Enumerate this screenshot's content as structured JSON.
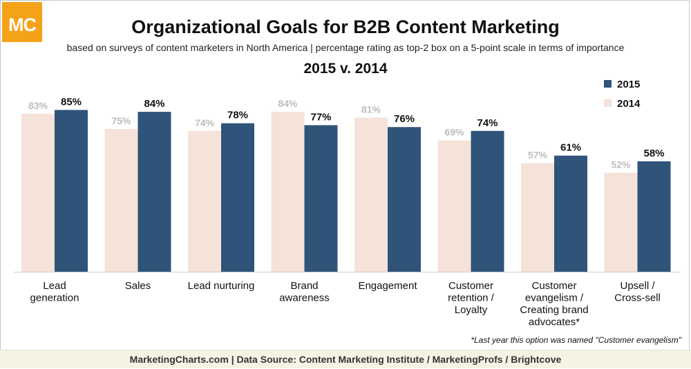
{
  "logo": {
    "text": "MC"
  },
  "header": {
    "title": "Organizational Goals for B2B Content Marketing",
    "subtitle": "based on surveys of content marketers in North America | percentage rating as top-2 box on a 5-point scale in terms of importance",
    "period": "2015 v. 2014"
  },
  "chart_data": {
    "type": "bar",
    "title": "Organizational Goals for B2B Content Marketing",
    "categories": [
      [
        "Lead",
        "generation"
      ],
      [
        "Sales"
      ],
      [
        "Lead nurturing"
      ],
      [
        "Brand",
        "awareness"
      ],
      [
        "Engagement"
      ],
      [
        "Customer",
        "retention /",
        "Loyalty"
      ],
      [
        "Customer",
        "evangelism /",
        "Creating brand",
        "advocates*"
      ],
      [
        "Upsell /",
        "Cross-sell"
      ]
    ],
    "series": [
      {
        "name": "2014",
        "color": "#f5e2d9",
        "label_color": "#bdbdbd",
        "values": [
          83,
          75,
          74,
          84,
          81,
          69,
          57,
          52
        ]
      },
      {
        "name": "2015",
        "color": "#30537a",
        "label_color": "#111111",
        "values": [
          85,
          84,
          78,
          77,
          76,
          74,
          61,
          58
        ]
      }
    ],
    "value_suffix": "%",
    "ylim": [
      0,
      100
    ],
    "grid": false,
    "legend": {
      "position": "top-right",
      "order": [
        "2015",
        "2014"
      ]
    },
    "xlabel": "",
    "ylabel": ""
  },
  "footnote": "*Last year this option was named \"Customer evangelism\"",
  "footer": "MarketingCharts.com | Data Source: Content Marketing Institute / MarketingProfs / Brightcove"
}
